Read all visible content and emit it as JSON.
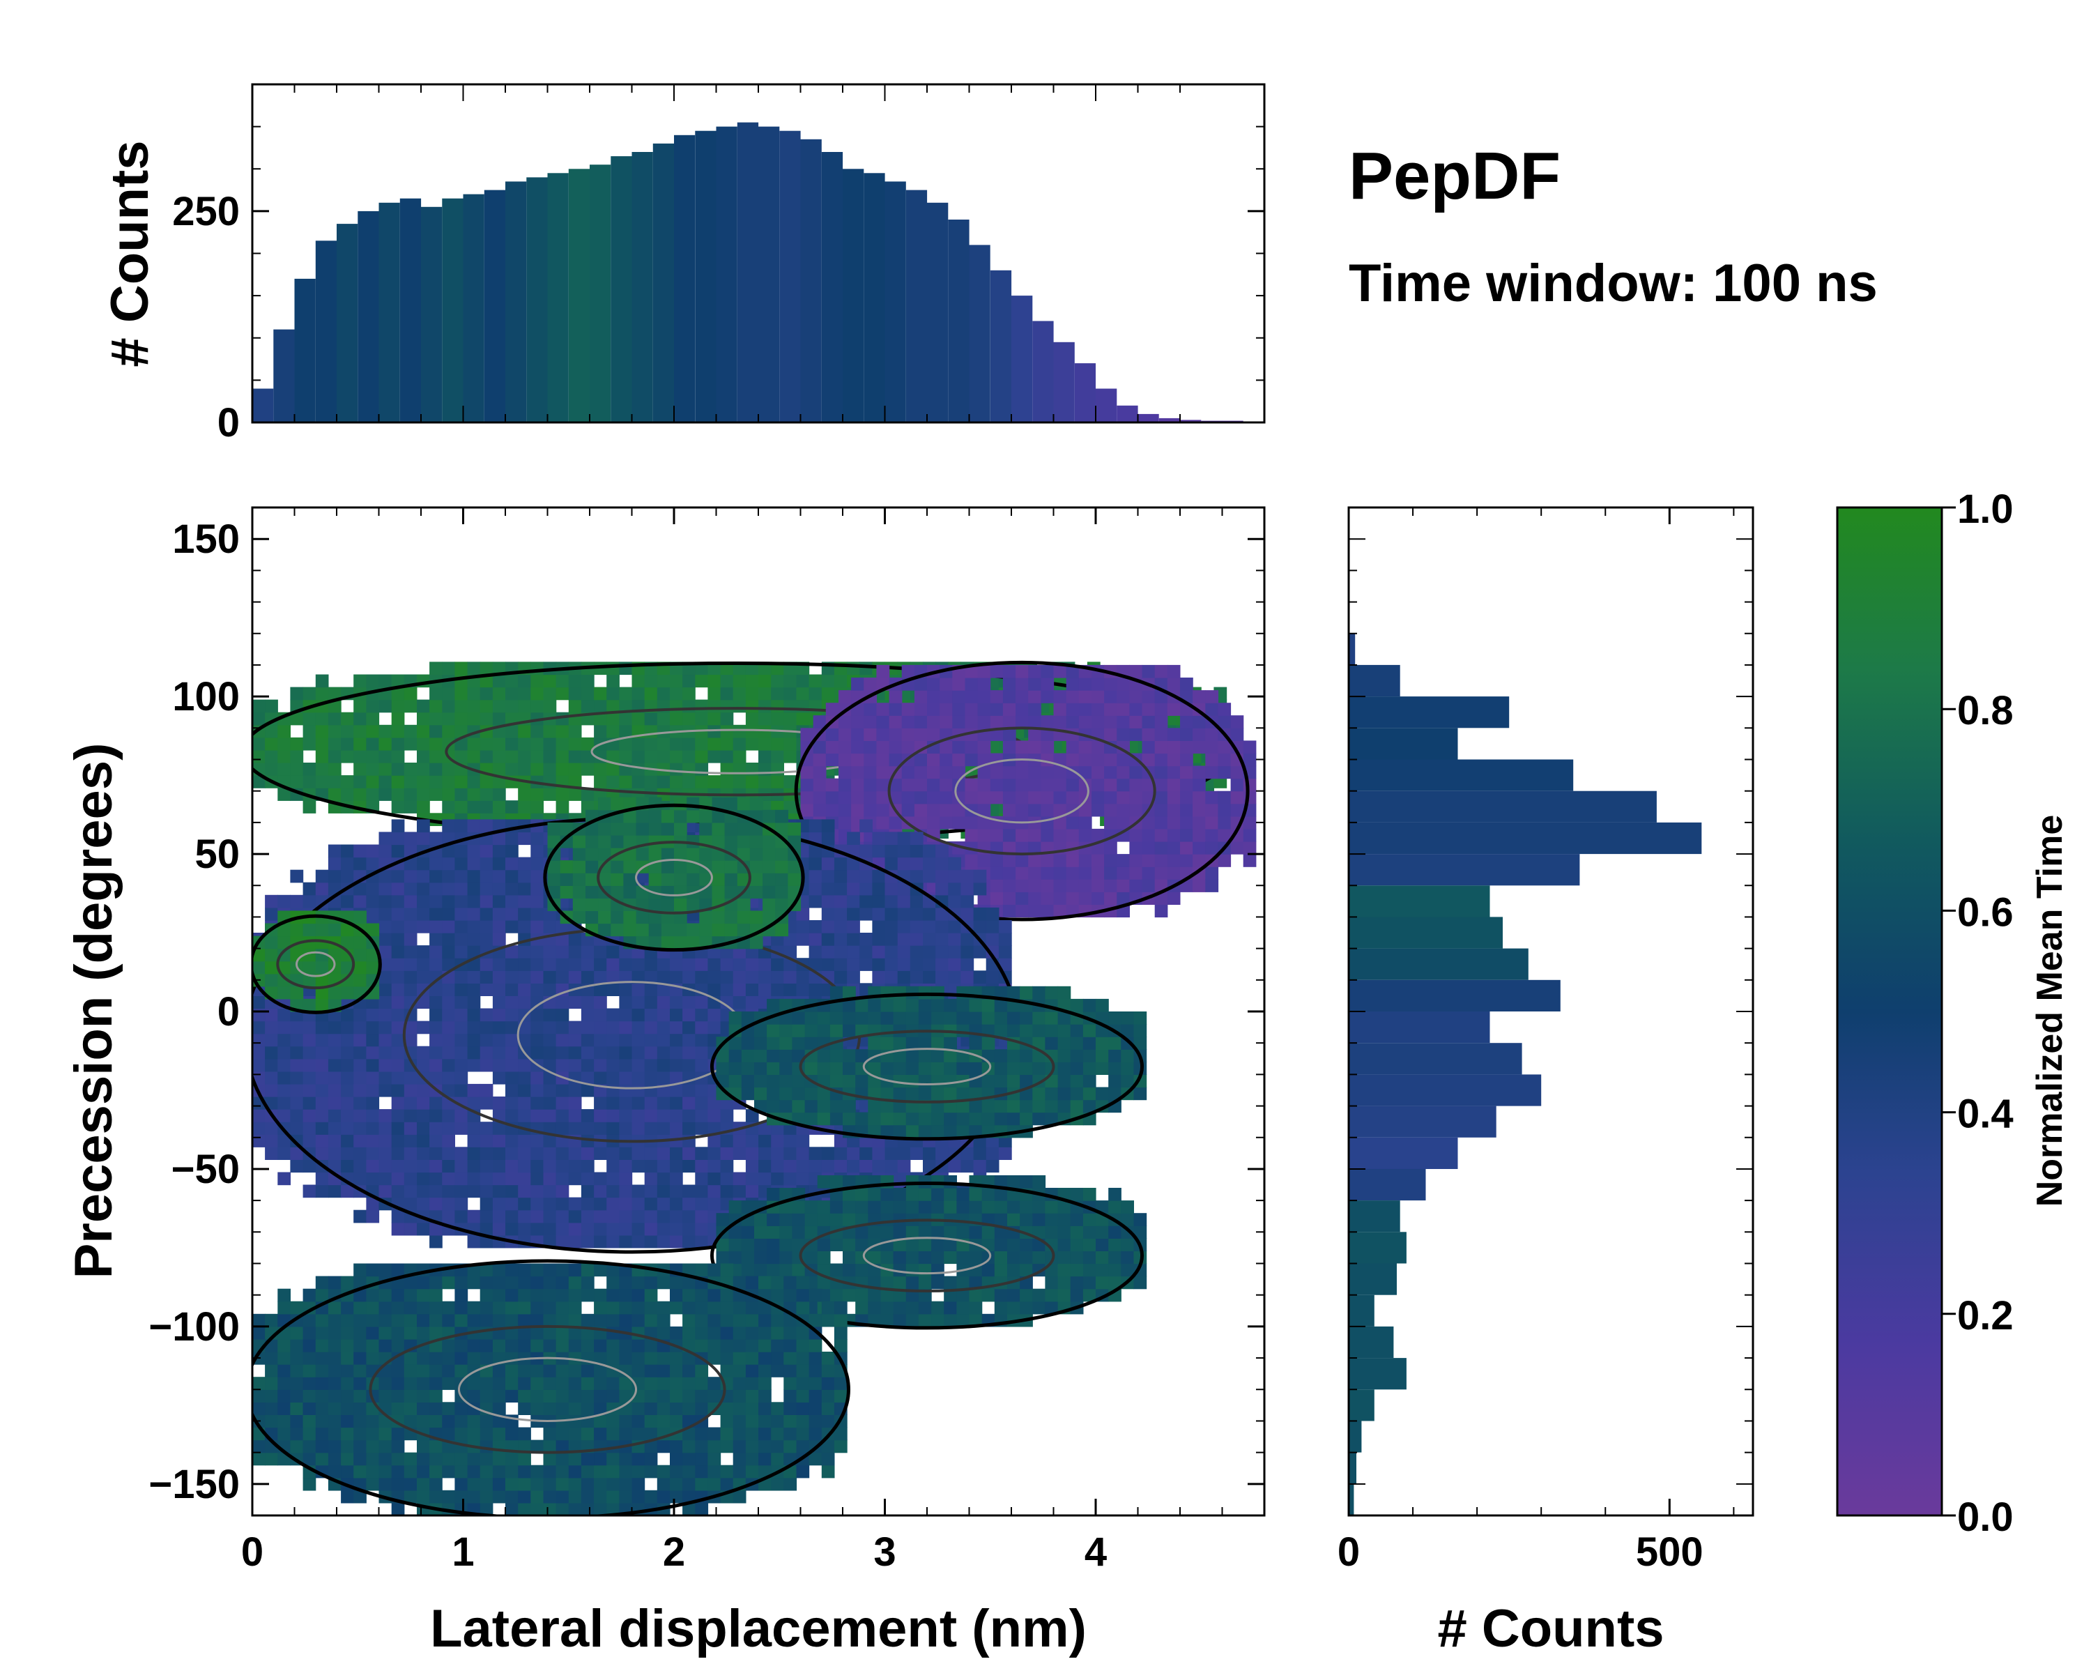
{
  "chart_data": [
    {
      "id": "joint",
      "type": "heatmap",
      "description_free": true,
      "xlabel": "Lateral displacement (nm)",
      "ylabel": "Precession (degrees)",
      "xlim": [
        0,
        4.8
      ],
      "ylim": [
        -160,
        160
      ],
      "xticks": [
        "0",
        "1",
        "2",
        "3",
        "4"
      ],
      "xtick_values": [
        0,
        1,
        2,
        3,
        4
      ],
      "yticks": [
        "150",
        "100",
        "50",
        "0",
        "−50",
        "−100",
        "−150"
      ],
      "ytick_values": [
        150,
        100,
        50,
        0,
        -50,
        -100,
        -150
      ],
      "clusters": [
        {
          "x": [
            0.0,
            4.6
          ],
          "y": [
            55,
            110
          ],
          "value": 0.85
        },
        {
          "x": [
            2.6,
            4.7
          ],
          "y": [
            30,
            110
          ],
          "value": 0.12
        },
        {
          "x": [
            0.0,
            3.6
          ],
          "y": [
            -75,
            60
          ],
          "value": 0.35
        },
        {
          "x": [
            0.0,
            0.6
          ],
          "y": [
            0,
            30
          ],
          "value": 0.9
        },
        {
          "x": [
            1.4,
            2.6
          ],
          "y": [
            20,
            65
          ],
          "value": 0.8
        },
        {
          "x": [
            2.2,
            4.2
          ],
          "y": [
            -40,
            5
          ],
          "value": 0.65
        },
        {
          "x": [
            2.2,
            4.2
          ],
          "y": [
            -100,
            -55
          ],
          "value": 0.62
        },
        {
          "x": [
            0.0,
            2.8
          ],
          "y": [
            -160,
            -80
          ],
          "value": 0.6
        }
      ]
    },
    {
      "id": "top_histogram",
      "type": "bar",
      "ylabel": "# Counts",
      "xlim": [
        0,
        4.8
      ],
      "ylim": [
        0,
        400
      ],
      "yticks": [
        "0",
        "250"
      ],
      "ytick_values": [
        0,
        250
      ],
      "bin_centers": [
        0.05,
        0.15,
        0.25,
        0.35,
        0.45,
        0.55,
        0.65,
        0.75,
        0.85,
        0.95,
        1.05,
        1.15,
        1.25,
        1.35,
        1.45,
        1.55,
        1.65,
        1.75,
        1.85,
        1.95,
        2.05,
        2.15,
        2.25,
        2.35,
        2.45,
        2.55,
        2.65,
        2.75,
        2.85,
        2.95,
        3.05,
        3.15,
        3.25,
        3.35,
        3.45,
        3.55,
        3.65,
        3.75,
        3.85,
        3.95,
        4.05,
        4.15,
        4.25,
        4.35,
        4.45,
        4.55,
        4.65,
        4.75
      ],
      "counts": [
        40,
        110,
        170,
        215,
        235,
        250,
        260,
        265,
        255,
        265,
        270,
        275,
        285,
        290,
        295,
        300,
        305,
        315,
        320,
        330,
        340,
        345,
        350,
        355,
        350,
        345,
        335,
        320,
        300,
        295,
        285,
        275,
        260,
        240,
        210,
        180,
        150,
        120,
        95,
        70,
        40,
        20,
        10,
        5,
        3,
        2,
        2,
        1
      ],
      "bin_color_values": [
        0.4,
        0.45,
        0.5,
        0.5,
        0.55,
        0.5,
        0.55,
        0.5,
        0.55,
        0.6,
        0.55,
        0.5,
        0.55,
        0.6,
        0.65,
        0.7,
        0.68,
        0.62,
        0.58,
        0.55,
        0.5,
        0.5,
        0.48,
        0.45,
        0.45,
        0.42,
        0.45,
        0.48,
        0.5,
        0.5,
        0.48,
        0.45,
        0.45,
        0.45,
        0.42,
        0.38,
        0.32,
        0.28,
        0.25,
        0.22,
        0.2,
        0.18,
        0.15,
        0.12,
        0.1,
        0.1,
        0.1,
        0.1
      ]
    },
    {
      "id": "right_histogram",
      "type": "bar",
      "orientation": "horizontal",
      "xlabel": "# Counts",
      "xlim": [
        0,
        630
      ],
      "xticks": [
        "0",
        "500"
      ],
      "xtick_values": [
        0,
        500
      ],
      "bin_centers": [
        115,
        105,
        95,
        85,
        75,
        65,
        55,
        45,
        35,
        25,
        15,
        5,
        -5,
        -15,
        -25,
        -35,
        -45,
        -55,
        -65,
        -75,
        -85,
        -95,
        -105,
        -115,
        -125,
        -135,
        -145,
        -155
      ],
      "counts": [
        10,
        80,
        250,
        170,
        350,
        480,
        550,
        360,
        220,
        240,
        280,
        330,
        220,
        270,
        300,
        230,
        170,
        120,
        80,
        90,
        75,
        40,
        70,
        90,
        40,
        20,
        12,
        8
      ],
      "bin_color_values": [
        0.4,
        0.45,
        0.48,
        0.5,
        0.48,
        0.45,
        0.45,
        0.42,
        0.65,
        0.62,
        0.58,
        0.45,
        0.4,
        0.42,
        0.4,
        0.38,
        0.35,
        0.4,
        0.6,
        0.62,
        0.6,
        0.6,
        0.6,
        0.6,
        0.62,
        0.6,
        0.6,
        0.6
      ]
    },
    {
      "id": "colorbar",
      "type": "colorbar",
      "label": "Normalized Mean Time",
      "range": [
        0,
        1
      ],
      "ticks": [
        "0.0",
        "0.2",
        "0.4",
        "0.6",
        "0.8",
        "1.0"
      ],
      "tick_values": [
        0,
        0.2,
        0.4,
        0.6,
        0.8,
        1.0
      ],
      "colors": [
        "#6a3a9c",
        "#4b3aa0",
        "#2c4390",
        "#0f3f6e",
        "#115a5e",
        "#1d7a48",
        "#22891f"
      ]
    }
  ],
  "annotation": {
    "title": "PepDF",
    "subtitle": "Time window: 100 ns"
  }
}
